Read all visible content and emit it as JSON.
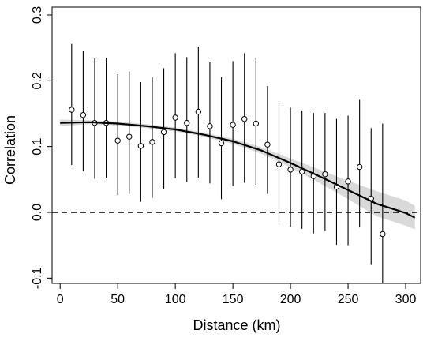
{
  "chart_data": {
    "type": "scatter",
    "title": "",
    "xlabel": "Distance (km)",
    "ylabel": "Correlation",
    "xlim": [
      -7,
      313
    ],
    "ylim": [
      -0.108,
      0.312
    ],
    "x_ticks": [
      0,
      50,
      100,
      150,
      200,
      250,
      300
    ],
    "x_tick_labels": [
      "0",
      "50",
      "100",
      "150",
      "200",
      "250",
      "300"
    ],
    "y_ticks": [
      -0.1,
      0.0,
      0.1,
      0.2,
      0.3
    ],
    "y_tick_labels": [
      "-0.1",
      "0.0",
      "0.1",
      "0.2",
      "0.3"
    ],
    "grid": false,
    "legend": "none",
    "reference_line": {
      "y": 0.0,
      "style": "dashed"
    },
    "points": {
      "x": [
        10,
        20,
        30,
        40,
        50,
        60,
        70,
        80,
        90,
        100,
        110,
        120,
        130,
        140,
        150,
        160,
        170,
        180,
        190,
        200,
        210,
        220,
        230,
        240,
        250,
        260,
        270,
        280
      ],
      "y": [
        0.156,
        0.148,
        0.136,
        0.136,
        0.109,
        0.115,
        0.101,
        0.107,
        0.122,
        0.144,
        0.136,
        0.153,
        0.131,
        0.105,
        0.133,
        0.142,
        0.135,
        0.103,
        0.073,
        0.065,
        0.062,
        0.055,
        0.058,
        0.039,
        0.047,
        0.069,
        0.021,
        -0.033
      ],
      "lower": [
        0.072,
        0.063,
        0.051,
        0.053,
        0.026,
        0.028,
        0.016,
        0.022,
        0.036,
        0.052,
        0.046,
        0.053,
        0.044,
        0.02,
        0.04,
        0.045,
        0.042,
        0.028,
        -0.015,
        -0.022,
        -0.025,
        -0.032,
        -0.028,
        -0.049,
        -0.05,
        -0.023,
        -0.08,
        -0.112
      ],
      "upper": [
        0.256,
        0.246,
        0.234,
        0.235,
        0.21,
        0.214,
        0.198,
        0.205,
        0.219,
        0.242,
        0.236,
        0.252,
        0.228,
        0.205,
        0.23,
        0.242,
        0.234,
        0.192,
        0.163,
        0.159,
        0.155,
        0.151,
        0.151,
        0.142,
        0.147,
        0.171,
        0.128,
        0.135
      ]
    },
    "trend": {
      "x": [
        0,
        25,
        50,
        75,
        100,
        125,
        150,
        175,
        200,
        225,
        250,
        275,
        300,
        308
      ],
      "y": [
        0.136,
        0.137,
        0.135,
        0.131,
        0.126,
        0.118,
        0.108,
        0.094,
        0.075,
        0.055,
        0.034,
        0.013,
        -0.001,
        -0.008
      ],
      "band_lower": [
        0.131,
        0.134,
        0.132,
        0.128,
        0.123,
        0.115,
        0.104,
        0.089,
        0.068,
        0.045,
        0.02,
        -0.006,
        -0.02,
        -0.026
      ],
      "band_upper": [
        0.141,
        0.14,
        0.138,
        0.134,
        0.129,
        0.121,
        0.112,
        0.099,
        0.082,
        0.065,
        0.048,
        0.032,
        0.018,
        0.01
      ]
    },
    "colors": {
      "band": "#d9d9d9",
      "line": "#000000",
      "points": "#000000"
    }
  }
}
